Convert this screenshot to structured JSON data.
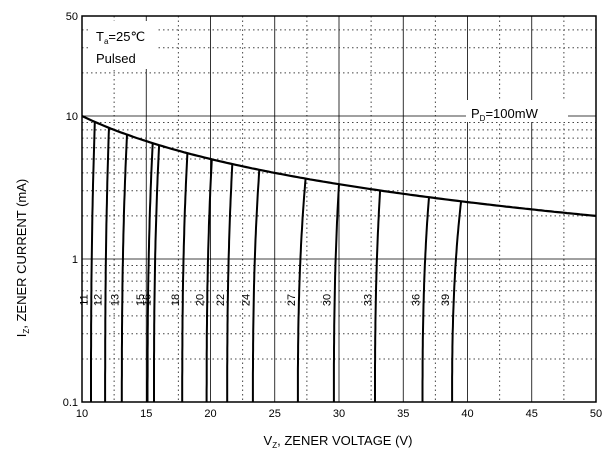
{
  "chart_data": {
    "type": "line",
    "xlabel": "Vz, ZENER VOLTAGE (V)",
    "ylabel": "Iz, ZENER CURRENT (mA)",
    "xlabel_parts": {
      "main": "V",
      "sub": "Z",
      "rest": ", ZENER VOLTAGE (V)"
    },
    "ylabel_parts": {
      "main": "I",
      "sub": "Z",
      "rest": ", ZENER CURRENT (mA)"
    },
    "xlim": [
      10,
      50
    ],
    "ylim": [
      0.1,
      50
    ],
    "yscale": "log",
    "grid": true,
    "x_ticks": [
      "10",
      "15",
      "20",
      "25",
      "30",
      "35",
      "40",
      "45",
      "50"
    ],
    "y_ticks": [
      "0.1",
      "1",
      "10",
      "50"
    ],
    "annotations": {
      "ta_main": "T",
      "ta_sub": "a",
      "ta_rest": "=25℃",
      "pulsed": "Pulsed",
      "pd_main": "P",
      "pd_sub": "D",
      "pd_rest": "=100mW"
    },
    "power_limit_curve": {
      "pd_mW": 100,
      "x_start": 10,
      "x_end": 50
    },
    "series": [
      {
        "name": "11",
        "x_at_0_1mA": 10.7,
        "x_at_limit": 11.0
      },
      {
        "name": "12",
        "x_at_0_1mA": 11.8,
        "x_at_limit": 12.1
      },
      {
        "name": "13",
        "x_at_0_1mA": 13.1,
        "x_at_limit": 13.5
      },
      {
        "name": "15",
        "x_at_0_1mA": 15.1,
        "x_at_limit": 15.5
      },
      {
        "name": "16",
        "x_at_0_1mA": 15.6,
        "x_at_limit": 16.0
      },
      {
        "name": "18",
        "x_at_0_1mA": 17.8,
        "x_at_limit": 18.2
      },
      {
        "name": "20",
        "x_at_0_1mA": 19.7,
        "x_at_limit": 20.1
      },
      {
        "name": "22",
        "x_at_0_1mA": 21.3,
        "x_at_limit": 21.7
      },
      {
        "name": "24",
        "x_at_0_1mA": 23.3,
        "x_at_limit": 23.8
      },
      {
        "name": "27",
        "x_at_0_1mA": 26.8,
        "x_at_limit": 27.4
      },
      {
        "name": "30",
        "x_at_0_1mA": 29.6,
        "x_at_limit": 30.0
      },
      {
        "name": "33",
        "x_at_0_1mA": 32.8,
        "x_at_limit": 33.2
      },
      {
        "name": "36",
        "x_at_0_1mA": 36.5,
        "x_at_limit": 37.0
      },
      {
        "name": "39",
        "x_at_0_1mA": 38.8,
        "x_at_limit": 39.5
      }
    ]
  }
}
